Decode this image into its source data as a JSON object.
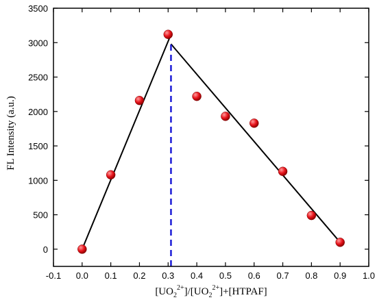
{
  "chart_data": {
    "type": "scatter",
    "ylabel": "FL Intensity (a.u.)",
    "xlabel_parts": [
      "[UO",
      "2",
      "2+",
      "]/[UO",
      "2",
      "2+",
      "]+[HTPAF]"
    ],
    "xlim": [
      -0.1,
      1.0
    ],
    "ylim": [
      -250,
      3500
    ],
    "x_ticks": [
      -0.1,
      0.0,
      0.1,
      0.2,
      0.3,
      0.4,
      0.5,
      0.6,
      0.7,
      0.8,
      0.9,
      1.0
    ],
    "x_tick_labels": [
      "-0.1",
      "0.0",
      "0.1",
      "0.2",
      "0.3",
      "0.4",
      "0.5",
      "0.6",
      "0.7",
      "0.8",
      "0.9",
      "1.0"
    ],
    "y_ticks": [
      0,
      500,
      1000,
      1500,
      2000,
      2500,
      3000,
      3500
    ],
    "y_tick_labels": [
      "0",
      "500",
      "1000",
      "1500",
      "2000",
      "2500",
      "3000",
      "3500"
    ],
    "points": [
      {
        "x": 0.0,
        "y": 0
      },
      {
        "x": 0.1,
        "y": 1080
      },
      {
        "x": 0.2,
        "y": 2160
      },
      {
        "x": 0.3,
        "y": 3120
      },
      {
        "x": 0.4,
        "y": 2220
      },
      {
        "x": 0.5,
        "y": 1930
      },
      {
        "x": 0.6,
        "y": 1830
      },
      {
        "x": 0.7,
        "y": 1130
      },
      {
        "x": 0.8,
        "y": 490
      },
      {
        "x": 0.9,
        "y": 100
      }
    ],
    "fit_lines": [
      {
        "x": [
          0.0,
          0.31
        ],
        "y": [
          0,
          3120
        ]
      },
      {
        "x": [
          0.31,
          0.9
        ],
        "y": [
          2980,
          100
        ]
      }
    ],
    "marker_line": {
      "x": 0.31,
      "y_range": [
        -250,
        2980
      ],
      "style": "dashed"
    },
    "colors": {
      "marker": "#e8141c",
      "marker_highlight": "#ff9b9b",
      "fit_line": "#000000",
      "marker_line": "#1a1ad6"
    },
    "grid": false,
    "legend": "none"
  }
}
